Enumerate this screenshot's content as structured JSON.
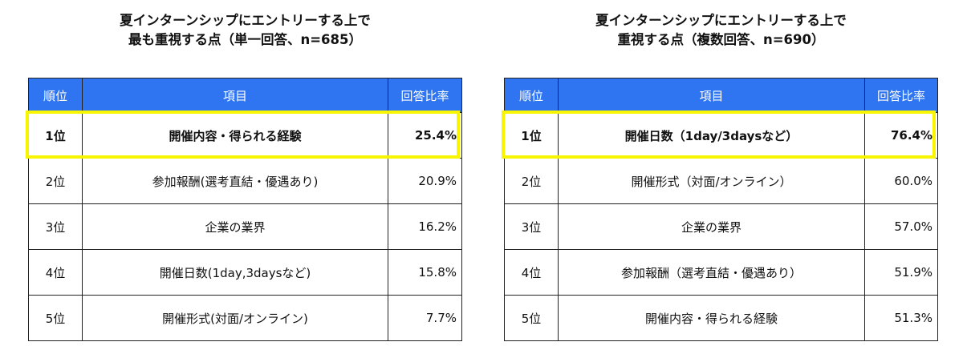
{
  "tables": [
    {
      "title_line1": "夏インターンシップにエントリーする上で",
      "title_line2": "最も重視する点（単一回答、n=685）",
      "headers": {
        "rank": "順位",
        "item": "項目",
        "rate": "回答比率"
      },
      "rows": [
        {
          "rank": "1位",
          "item": "開催内容・得られる経験",
          "rate": "25.4%"
        },
        {
          "rank": "2位",
          "item": "参加報酬(選考直結・優遇あり)",
          "rate": "20.9%"
        },
        {
          "rank": "3位",
          "item": "企業の業界",
          "rate": "16.2%"
        },
        {
          "rank": "4位",
          "item": "開催日数(1day,3daysなど)",
          "rate": "15.8%"
        },
        {
          "rank": "5位",
          "item": "開催形式(対面/オンライン)",
          "rate": "7.7%"
        }
      ]
    },
    {
      "title_line1": "夏インターンシップにエントリーする上で",
      "title_line2": "重視する点（複数回答、n=690）",
      "headers": {
        "rank": "順位",
        "item": "項目",
        "rate": "回答比率"
      },
      "rows": [
        {
          "rank": "1位",
          "item": "開催日数（1day/3daysなど）",
          "rate": "76.4%"
        },
        {
          "rank": "2位",
          "item": "開催形式（対面/オンライン）",
          "rate": "60.0%"
        },
        {
          "rank": "3位",
          "item": "企業の業界",
          "rate": "57.0%"
        },
        {
          "rank": "4位",
          "item": "参加報酬（選考直結・優遇あり）",
          "rate": "51.9%"
        },
        {
          "rank": "5位",
          "item": "開催内容・得られる経験",
          "rate": "51.3%"
        }
      ]
    }
  ],
  "colors": {
    "header": "#2f74f0",
    "highlight": "#f7f500"
  }
}
